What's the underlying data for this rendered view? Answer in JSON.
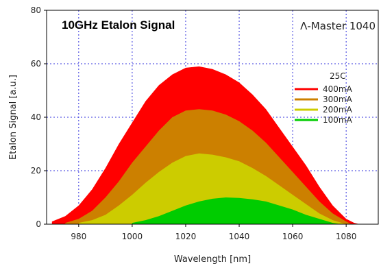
{
  "chart_data": {
    "type": "area",
    "title": "10GHz Etalon Signal",
    "subtitle": "Λ-Master 1040",
    "xlabel": "Wavelength [nm]",
    "ylabel": "Etalon Signal [a.u.]",
    "xlim": [
      968,
      1092
    ],
    "ylim": [
      0,
      80
    ],
    "xticks": [
      980,
      1000,
      1020,
      1040,
      1060,
      1080
    ],
    "yticks": [
      0,
      20,
      40,
      60,
      80
    ],
    "grid": true,
    "legend_title": "25C",
    "legend_position": "right",
    "series": [
      {
        "name": "400mA",
        "color": "#ff0000",
        "x": [
          970,
          975,
          980,
          985,
          990,
          995,
          1000,
          1005,
          1010,
          1015,
          1020,
          1025,
          1030,
          1035,
          1040,
          1045,
          1050,
          1055,
          1060,
          1065,
          1070,
          1075,
          1080,
          1083,
          1085
        ],
        "y": [
          1,
          3,
          7,
          13,
          21,
          30,
          38,
          46,
          52,
          56,
          58.5,
          59,
          58,
          56,
          53,
          48.5,
          43,
          36,
          29,
          22,
          14,
          7,
          2,
          0.5,
          0
        ]
      },
      {
        "name": "300mA",
        "color": "#cc8000",
        "x": [
          975,
          980,
          985,
          990,
          995,
          1000,
          1005,
          1010,
          1015,
          1020,
          1025,
          1030,
          1035,
          1040,
          1045,
          1050,
          1055,
          1060,
          1065,
          1070,
          1075,
          1080,
          1082
        ],
        "y": [
          0.5,
          2,
          5,
          10,
          16,
          23,
          29,
          35,
          40,
          42.5,
          43,
          42.5,
          41,
          38.5,
          35,
          30.5,
          25,
          19.5,
          14,
          8.5,
          4,
          1,
          0
        ]
      },
      {
        "name": "200mA",
        "color": "#cccc00",
        "x": [
          980,
          985,
          990,
          995,
          1000,
          1005,
          1010,
          1015,
          1020,
          1025,
          1030,
          1035,
          1040,
          1045,
          1050,
          1055,
          1060,
          1065,
          1070,
          1075,
          1080
        ],
        "y": [
          0.5,
          1.5,
          3.5,
          7,
          11,
          15.5,
          19.5,
          23,
          25.5,
          26.5,
          26,
          25,
          23.5,
          21,
          18,
          14.5,
          11,
          7.5,
          4,
          1.5,
          0
        ]
      },
      {
        "name": "100mA",
        "color": "#00cc00",
        "x": [
          1000,
          1005,
          1010,
          1015,
          1020,
          1025,
          1030,
          1035,
          1040,
          1045,
          1050,
          1055,
          1060,
          1065,
          1070,
          1075,
          1078
        ],
        "y": [
          0.5,
          1.5,
          3,
          5,
          7,
          8.5,
          9.5,
          10,
          9.8,
          9.3,
          8.5,
          7,
          5.5,
          3.5,
          2,
          0.5,
          0
        ]
      }
    ]
  }
}
